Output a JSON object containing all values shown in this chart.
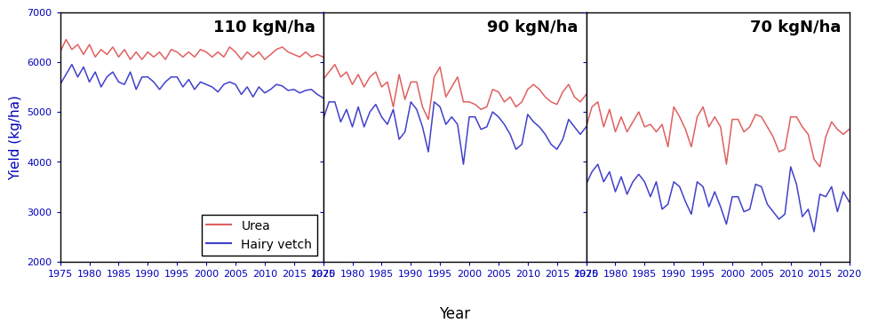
{
  "years": [
    1975,
    1976,
    1977,
    1978,
    1979,
    1980,
    1981,
    1982,
    1983,
    1984,
    1985,
    1986,
    1987,
    1988,
    1989,
    1990,
    1991,
    1992,
    1993,
    1994,
    1995,
    1996,
    1997,
    1998,
    1999,
    2000,
    2001,
    2002,
    2003,
    2004,
    2005,
    2006,
    2007,
    2008,
    2009,
    2010,
    2011,
    2012,
    2013,
    2014,
    2015,
    2016,
    2017,
    2018,
    2019,
    2020
  ],
  "panel_labels": [
    "110 kgN/ha",
    "90 kgN/ha",
    "70 kgN/ha"
  ],
  "urea_110": [
    6200,
    6450,
    6250,
    6350,
    6150,
    6350,
    6100,
    6250,
    6150,
    6300,
    6100,
    6250,
    6050,
    6200,
    6050,
    6200,
    6100,
    6200,
    6050,
    6250,
    6200,
    6100,
    6200,
    6100,
    6250,
    6200,
    6100,
    6200,
    6100,
    6300,
    6200,
    6050,
    6200,
    6100,
    6200,
    6050,
    6150,
    6250,
    6300,
    6200,
    6150,
    6100,
    6200,
    6100,
    6150,
    6100
  ],
  "hairy_110": [
    5550,
    5750,
    5950,
    5700,
    5900,
    5600,
    5800,
    5500,
    5700,
    5800,
    5600,
    5550,
    5800,
    5450,
    5700,
    5700,
    5600,
    5450,
    5600,
    5700,
    5700,
    5500,
    5650,
    5450,
    5600,
    5550,
    5500,
    5400,
    5550,
    5600,
    5550,
    5350,
    5500,
    5300,
    5500,
    5380,
    5450,
    5550,
    5520,
    5430,
    5450,
    5380,
    5430,
    5450,
    5350,
    5280
  ],
  "urea_90": [
    5650,
    5800,
    5950,
    5700,
    5800,
    5550,
    5750,
    5500,
    5700,
    5800,
    5500,
    5600,
    5100,
    5750,
    5250,
    5600,
    5600,
    5100,
    4850,
    5700,
    5900,
    5300,
    5500,
    5700,
    5200,
    5200,
    5150,
    5050,
    5100,
    5450,
    5400,
    5200,
    5300,
    5100,
    5200,
    5450,
    5550,
    5450,
    5300,
    5200,
    5150,
    5400,
    5550,
    5300,
    5200,
    5350
  ],
  "hairy_90": [
    4850,
    5200,
    5200,
    4800,
    5050,
    4700,
    5100,
    4700,
    5000,
    5150,
    4900,
    4750,
    5050,
    4450,
    4600,
    5200,
    5050,
    4700,
    4200,
    5200,
    5100,
    4750,
    4900,
    4750,
    3950,
    4900,
    4900,
    4650,
    4700,
    5000,
    4900,
    4750,
    4550,
    4250,
    4350,
    4950,
    4800,
    4700,
    4550,
    4350,
    4250,
    4450,
    4850,
    4700,
    4550,
    4700
  ],
  "urea_70": [
    4700,
    5100,
    5200,
    4700,
    5050,
    4600,
    4900,
    4600,
    4800,
    5000,
    4700,
    4750,
    4600,
    4750,
    4300,
    5100,
    4900,
    4650,
    4300,
    4900,
    5100,
    4700,
    4900,
    4700,
    3950,
    4850,
    4850,
    4600,
    4700,
    4950,
    4900,
    4700,
    4500,
    4200,
    4250,
    4900,
    4900,
    4700,
    4550,
    4050,
    3900,
    4500,
    4800,
    4650,
    4550,
    4650
  ],
  "hairy_70": [
    3550,
    3800,
    3950,
    3600,
    3800,
    3400,
    3700,
    3350,
    3600,
    3750,
    3600,
    3300,
    3600,
    3050,
    3150,
    3600,
    3500,
    3200,
    2950,
    3600,
    3500,
    3100,
    3400,
    3100,
    2750,
    3300,
    3300,
    3000,
    3050,
    3550,
    3500,
    3150,
    3000,
    2850,
    2950,
    3900,
    3550,
    2900,
    3050,
    2600,
    3350,
    3300,
    3500,
    3000,
    3400,
    3200
  ],
  "ylim": [
    2000,
    7000
  ],
  "yticks": [
    2000,
    3000,
    4000,
    5000,
    6000,
    7000
  ],
  "xlim": [
    1975,
    2020
  ],
  "xticks": [
    1975,
    1980,
    1985,
    1990,
    1995,
    2000,
    2005,
    2010,
    2015,
    2020
  ],
  "ylabel": "Yield (kg/ha)",
  "xlabel": "Year",
  "urea_color": "#E06060",
  "hairy_color": "#4040CC",
  "legend_labels": [
    "Urea",
    "Hairy vetch"
  ],
  "title_fontsize": 12,
  "axis_fontsize": 11,
  "tick_fontsize": 8,
  "tick_color": "#0000BB",
  "label_color": "#0000BB",
  "ytick_label_color": "#0000BB",
  "panel_label_fontsize": 13
}
